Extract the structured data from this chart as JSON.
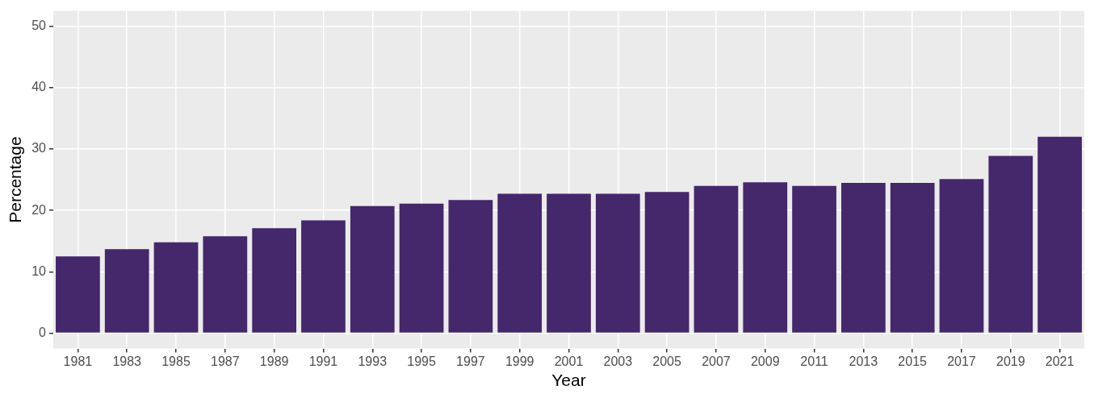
{
  "chart_data": {
    "type": "bar",
    "xlabel": "Year",
    "ylabel": "Percentage",
    "categories": [
      "1981",
      "1983",
      "1985",
      "1987",
      "1989",
      "1991",
      "1993",
      "1995",
      "1997",
      "1999",
      "2001",
      "2003",
      "2005",
      "2007",
      "2009",
      "2011",
      "2013",
      "2015",
      "2017",
      "2019",
      "2021"
    ],
    "values": [
      12.5,
      13.7,
      14.8,
      15.8,
      17.1,
      18.4,
      20.7,
      21.1,
      21.7,
      22.7,
      22.7,
      22.7,
      23.0,
      24.0,
      24.6,
      24.0,
      24.5,
      24.5,
      25.1,
      28.9,
      32.0
    ],
    "color": "#45276b",
    "ylim": [
      -2.5,
      52.5
    ],
    "yticks": [
      0,
      10,
      20,
      30,
      40,
      50
    ],
    "grid": true,
    "legend": false
  }
}
